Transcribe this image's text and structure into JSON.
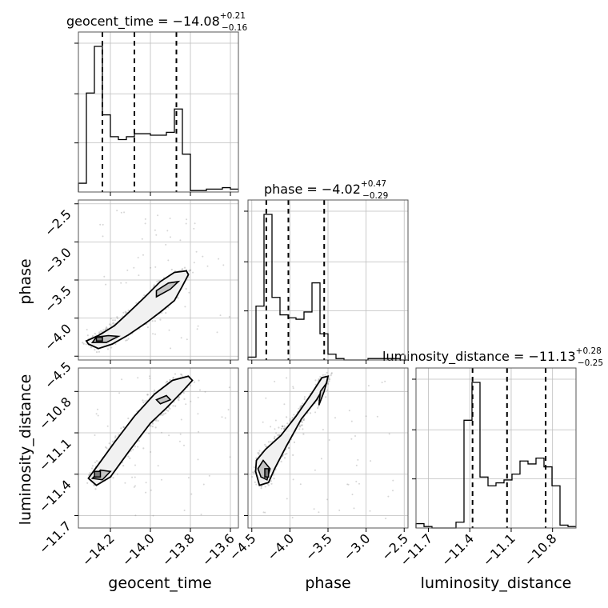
{
  "chart_data": {
    "type": "corner",
    "parameters": [
      "geocent_time",
      "phase",
      "luminosity_distance"
    ],
    "axis_labels": {
      "x": [
        "geocent_time",
        "phase",
        "luminosity_distance"
      ],
      "y": [
        "phase",
        "luminosity_distance"
      ]
    },
    "titles": [
      {
        "prefix": "geocent_time = ",
        "median": "−14.08",
        "plus": "+0.21",
        "minus": "−0.16"
      },
      {
        "prefix": "phase = ",
        "median": "−4.02",
        "plus": "+0.47",
        "minus": "−0.29"
      },
      {
        "prefix": "luminosity_distance = ",
        "median": "−11.13",
        "plus": "+0.28",
        "minus": "−0.25"
      }
    ],
    "ranges": {
      "geocent_time": [
        -14.36,
        -13.56
      ],
      "phase": [
        -4.55,
        -2.45
      ],
      "luminosity_distance": [
        -11.79,
        -10.63
      ]
    },
    "ticks": {
      "geocent_time": {
        "values": [
          -14.2,
          -14.0,
          -13.8,
          -13.6
        ],
        "labels": [
          "−14.2",
          "−14.0",
          "−13.8",
          "−13.6"
        ]
      },
      "phase": {
        "values": [
          -4.5,
          -4.0,
          -3.5,
          -3.0,
          -2.5
        ],
        "labels": [
          "−4.5",
          "−4.0",
          "−3.5",
          "−3.0",
          "−2.5"
        ]
      },
      "luminosity_distance": {
        "values": [
          -11.7,
          -11.4,
          -11.1,
          -10.8
        ],
        "labels": [
          "−11.7",
          "−11.4",
          "−11.1",
          "−10.8"
        ]
      }
    },
    "quantiles": {
      "geocent_time": [
        -14.24,
        -14.08,
        -13.87
      ],
      "phase": [
        -4.31,
        -4.02,
        -3.55
      ],
      "luminosity_distance": [
        -11.38,
        -11.13,
        -10.85
      ]
    },
    "histograms": {
      "geocent_time": {
        "edges": [
          -14.36,
          -14.32,
          -14.28,
          -14.24,
          -14.2,
          -14.16,
          -14.12,
          -14.08,
          -14.04,
          -14.0,
          -13.96,
          -13.92,
          -13.88,
          -13.84,
          -13.8,
          -13.76,
          -13.72,
          -13.68,
          -13.64,
          -13.6,
          -13.56
        ],
        "counts": [
          0.06,
          0.68,
          1.0,
          0.53,
          0.38,
          0.36,
          0.38,
          0.4,
          0.4,
          0.39,
          0.39,
          0.41,
          0.57,
          0.26,
          0.01,
          0.01,
          0.02,
          0.02,
          0.03,
          0.02
        ]
      },
      "phase": {
        "edges": [
          -4.55,
          -4.445,
          -4.34,
          -4.235,
          -4.13,
          -4.025,
          -3.92,
          -3.815,
          -3.71,
          -3.605,
          -3.5,
          -3.395,
          -3.29,
          -3.185,
          -3.08,
          -2.975,
          -2.87,
          -2.765,
          -2.66,
          -2.555,
          -2.45
        ],
        "counts": [
          0.02,
          0.37,
          1.0,
          0.43,
          0.31,
          0.29,
          0.28,
          0.33,
          0.53,
          0.18,
          0.04,
          0.01,
          0.0,
          0.0,
          0.0,
          0.01,
          0.01,
          0.01,
          0.01,
          0.0
        ]
      },
      "luminosity_distance": {
        "edges": [
          -11.79,
          -11.732,
          -11.674,
          -11.616,
          -11.558,
          -11.5,
          -11.442,
          -11.384,
          -11.326,
          -11.268,
          -11.21,
          -11.152,
          -11.094,
          -11.036,
          -10.978,
          -10.92,
          -10.862,
          -10.804,
          -10.746,
          -10.688,
          -10.63
        ],
        "counts": [
          0.03,
          0.01,
          0.0,
          0.0,
          0.0,
          0.04,
          0.74,
          1.0,
          0.35,
          0.29,
          0.31,
          0.33,
          0.37,
          0.46,
          0.44,
          0.48,
          0.42,
          0.29,
          0.02,
          0.01
        ]
      }
    },
    "contour_levels": [
      "outer",
      "middle",
      "inner"
    ],
    "contours_2d": {
      "phase_vs_geocent_time": {
        "outer": [
          [
            -14.31,
            -4.34
          ],
          [
            -14.26,
            -4.4
          ],
          [
            -14.19,
            -4.34
          ],
          [
            -14.11,
            -4.22
          ],
          [
            -14.02,
            -4.06
          ],
          [
            -13.95,
            -3.92
          ],
          [
            -13.88,
            -3.77
          ],
          [
            -13.84,
            -3.58
          ],
          [
            -13.81,
            -3.43
          ],
          [
            -13.82,
            -3.38
          ],
          [
            -13.88,
            -3.4
          ],
          [
            -13.95,
            -3.52
          ],
          [
            -14.03,
            -3.73
          ],
          [
            -14.11,
            -3.93
          ],
          [
            -14.18,
            -4.1
          ],
          [
            -14.26,
            -4.23
          ],
          [
            -14.32,
            -4.3
          ]
        ],
        "middle": [
          [
            -14.29,
            -4.32
          ],
          [
            -14.22,
            -4.32
          ],
          [
            -14.16,
            -4.24
          ],
          [
            -14.21,
            -4.23
          ],
          [
            -14.27,
            -4.25
          ]
        ],
        "middle2": [
          [
            -13.97,
            -3.72
          ],
          [
            -13.9,
            -3.62
          ],
          [
            -13.86,
            -3.52
          ],
          [
            -13.91,
            -3.54
          ],
          [
            -13.97,
            -3.64
          ]
        ],
        "inner": [
          [
            -14.27,
            -4.3
          ],
          [
            -14.24,
            -4.3
          ],
          [
            -14.24,
            -4.25
          ],
          [
            -14.27,
            -4.25
          ]
        ]
      },
      "luminosity_distance_vs_geocent_time": {
        "outer": [
          [
            -14.31,
            -11.43
          ],
          [
            -14.27,
            -11.48
          ],
          [
            -14.2,
            -11.42
          ],
          [
            -14.1,
            -11.22
          ],
          [
            -14.0,
            -11.03
          ],
          [
            -13.92,
            -10.92
          ],
          [
            -13.84,
            -10.8
          ],
          [
            -13.79,
            -10.72
          ],
          [
            -13.81,
            -10.69
          ],
          [
            -13.89,
            -10.72
          ],
          [
            -13.98,
            -10.82
          ],
          [
            -14.08,
            -10.98
          ],
          [
            -14.18,
            -11.17
          ],
          [
            -14.26,
            -11.33
          ]
        ],
        "middle": [
          [
            -14.29,
            -11.43
          ],
          [
            -14.24,
            -11.44
          ],
          [
            -14.2,
            -11.38
          ],
          [
            -14.25,
            -11.37
          ]
        ],
        "middle_small": [
          [
            -13.95,
            -10.89
          ],
          [
            -13.9,
            -10.86
          ],
          [
            -13.92,
            -10.83
          ],
          [
            -13.97,
            -10.86
          ]
        ],
        "inner": [
          [
            -14.28,
            -11.42
          ],
          [
            -14.25,
            -11.42
          ],
          [
            -14.25,
            -11.38
          ],
          [
            -14.28,
            -11.38
          ]
        ]
      },
      "luminosity_distance_vs_phase": {
        "outer": [
          [
            -4.45,
            -11.38
          ],
          [
            -4.4,
            -11.48
          ],
          [
            -4.28,
            -11.46
          ],
          [
            -4.2,
            -11.36
          ],
          [
            -4.05,
            -11.2
          ],
          [
            -3.85,
            -11.0
          ],
          [
            -3.65,
            -10.86
          ],
          [
            -3.52,
            -10.74
          ],
          [
            -3.5,
            -10.69
          ],
          [
            -3.58,
            -10.7
          ],
          [
            -3.72,
            -10.82
          ],
          [
            -3.92,
            -10.98
          ],
          [
            -4.12,
            -11.12
          ],
          [
            -4.32,
            -11.22
          ],
          [
            -4.44,
            -11.3
          ]
        ],
        "middle": [
          [
            -4.38,
            -11.42
          ],
          [
            -4.3,
            -11.44
          ],
          [
            -4.26,
            -11.36
          ],
          [
            -4.35,
            -11.3
          ],
          [
            -4.42,
            -11.36
          ]
        ],
        "middle2": [
          [
            -3.62,
            -10.9
          ],
          [
            -3.55,
            -10.8
          ],
          [
            -3.52,
            -10.74
          ],
          [
            -3.6,
            -10.8
          ]
        ],
        "inner": [
          [
            -4.33,
            -11.42
          ],
          [
            -4.28,
            -11.42
          ],
          [
            -4.28,
            -11.36
          ],
          [
            -4.33,
            -11.36
          ]
        ]
      }
    },
    "grid": true
  }
}
